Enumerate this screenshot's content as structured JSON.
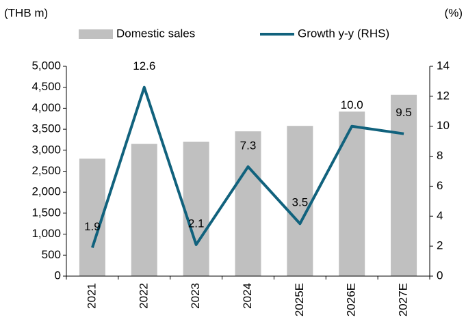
{
  "chart_data": {
    "type": "bar",
    "y_label": "(THB m)",
    "y2_label": "(%)",
    "categories": [
      "2021",
      "2022",
      "2023",
      "2024",
      "2025E",
      "2026E",
      "2027E"
    ],
    "series": [
      {
        "name": "Domestic sales",
        "type": "bar",
        "color": "#c0c0c0",
        "axis": "y",
        "values": [
          2800,
          3150,
          3200,
          3450,
          3580,
          3920,
          4320
        ]
      },
      {
        "name": "Growth y-y (RHS)",
        "type": "line",
        "color": "#11627d",
        "axis": "y2",
        "values": [
          1.9,
          12.6,
          2.1,
          7.3,
          3.5,
          10.0,
          9.5
        ],
        "value_labels": [
          "1.9",
          "12.6",
          "2.1",
          "7.3",
          "3.5",
          "10.0",
          "9.5"
        ]
      }
    ],
    "ylim": [
      0,
      5000
    ],
    "yticks": [
      0,
      500,
      {
        "value": 1000,
        "label": "1,000"
      },
      {
        "value": 1500,
        "label": "1,500"
      },
      {
        "value": 2000,
        "label": "2,000"
      },
      {
        "value": 2500,
        "label": "2,500"
      },
      {
        "value": 3000,
        "label": "3,000"
      },
      {
        "value": 3500,
        "label": "3,500"
      },
      {
        "value": 4000,
        "label": "4,000"
      },
      {
        "value": 4500,
        "label": "4,500"
      },
      {
        "value": 5000,
        "label": "5,000"
      }
    ],
    "y2lim": [
      0,
      14
    ],
    "y2ticks": [
      0,
      2,
      4,
      6,
      8,
      10,
      12,
      14
    ],
    "grid": false,
    "legend": "top"
  }
}
